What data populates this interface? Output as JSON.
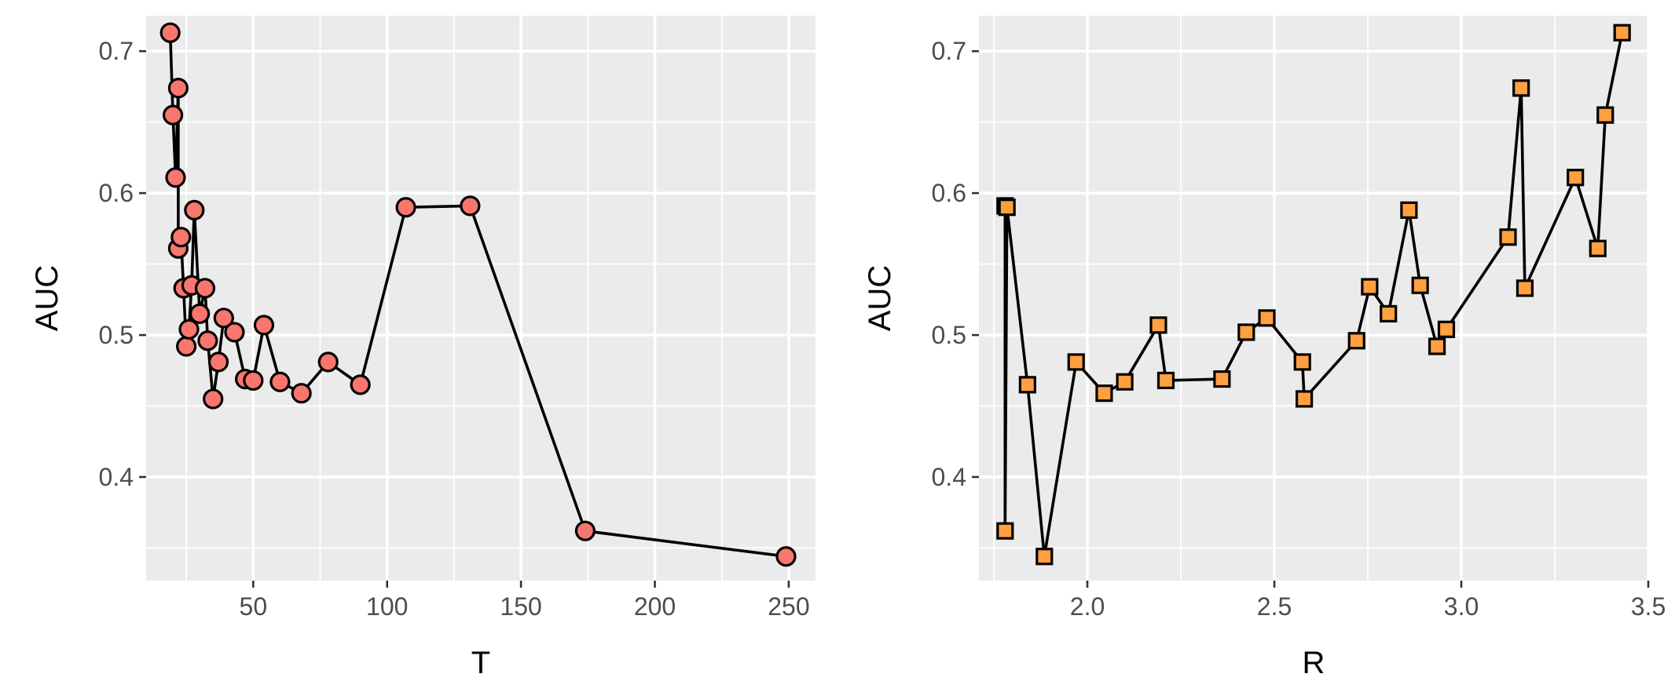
{
  "chart_data": [
    {
      "type": "line",
      "xlabel": "T",
      "ylabel": "AUC",
      "xlim": [
        10,
        260
      ],
      "ylim": [
        0.327,
        0.725
      ],
      "x_ticks": [
        50,
        100,
        150,
        200,
        250
      ],
      "y_ticks": [
        0.4,
        0.5,
        0.6,
        0.7
      ],
      "x_tick_labels": [
        "50",
        "100",
        "150",
        "200",
        "250"
      ],
      "y_tick_labels": [
        "0.4",
        "0.5",
        "0.6",
        "0.7"
      ],
      "grid": true,
      "marker": "circle",
      "marker_color": "#f8766d",
      "points": [
        {
          "x": 19,
          "y": 0.713
        },
        {
          "x": 20,
          "y": 0.655
        },
        {
          "x": 21,
          "y": 0.611
        },
        {
          "x": 22,
          "y": 0.674
        },
        {
          "x": 22,
          "y": 0.561
        },
        {
          "x": 23,
          "y": 0.569
        },
        {
          "x": 24,
          "y": 0.533
        },
        {
          "x": 25,
          "y": 0.492
        },
        {
          "x": 26,
          "y": 0.504
        },
        {
          "x": 27,
          "y": 0.535
        },
        {
          "x": 28,
          "y": 0.588
        },
        {
          "x": 30,
          "y": 0.515
        },
        {
          "x": 32,
          "y": 0.533
        },
        {
          "x": 33,
          "y": 0.496
        },
        {
          "x": 35,
          "y": 0.455
        },
        {
          "x": 37,
          "y": 0.481
        },
        {
          "x": 39,
          "y": 0.512
        },
        {
          "x": 43,
          "y": 0.502
        },
        {
          "x": 47,
          "y": 0.469
        },
        {
          "x": 50,
          "y": 0.468
        },
        {
          "x": 54,
          "y": 0.507
        },
        {
          "x": 60,
          "y": 0.467
        },
        {
          "x": 68,
          "y": 0.459
        },
        {
          "x": 78,
          "y": 0.481
        },
        {
          "x": 90,
          "y": 0.465
        },
        {
          "x": 107,
          "y": 0.59
        },
        {
          "x": 131,
          "y": 0.591
        },
        {
          "x": 174,
          "y": 0.362
        },
        {
          "x": 249,
          "y": 0.344
        }
      ]
    },
    {
      "type": "line",
      "xlabel": "R",
      "ylabel": "AUC",
      "xlim": [
        1.71,
        3.5
      ],
      "ylim": [
        0.327,
        0.725
      ],
      "x_ticks": [
        2.0,
        2.5,
        3.0,
        3.5
      ],
      "y_ticks": [
        0.4,
        0.5,
        0.6,
        0.7
      ],
      "x_tick_labels": [
        "2.0",
        "2.5",
        "3.0",
        "3.5"
      ],
      "y_tick_labels": [
        "0.4",
        "0.5",
        "0.6",
        "0.7"
      ],
      "grid": true,
      "marker": "square",
      "marker_color": "#ff9f40",
      "points": [
        {
          "x": 1.78,
          "y": 0.591
        },
        {
          "x": 1.78,
          "y": 0.362
        },
        {
          "x": 1.785,
          "y": 0.59
        },
        {
          "x": 1.84,
          "y": 0.465
        },
        {
          "x": 1.885,
          "y": 0.344
        },
        {
          "x": 1.97,
          "y": 0.481
        },
        {
          "x": 2.045,
          "y": 0.459
        },
        {
          "x": 2.1,
          "y": 0.467
        },
        {
          "x": 2.19,
          "y": 0.507
        },
        {
          "x": 2.21,
          "y": 0.468
        },
        {
          "x": 2.36,
          "y": 0.469
        },
        {
          "x": 2.425,
          "y": 0.502
        },
        {
          "x": 2.48,
          "y": 0.512
        },
        {
          "x": 2.575,
          "y": 0.481
        },
        {
          "x": 2.58,
          "y": 0.455
        },
        {
          "x": 2.72,
          "y": 0.496
        },
        {
          "x": 2.755,
          "y": 0.534
        },
        {
          "x": 2.805,
          "y": 0.515
        },
        {
          "x": 2.86,
          "y": 0.588
        },
        {
          "x": 2.89,
          "y": 0.535
        },
        {
          "x": 2.935,
          "y": 0.492
        },
        {
          "x": 2.96,
          "y": 0.504
        },
        {
          "x": 3.125,
          "y": 0.569
        },
        {
          "x": 3.16,
          "y": 0.674
        },
        {
          "x": 3.17,
          "y": 0.533
        },
        {
          "x": 3.305,
          "y": 0.611
        },
        {
          "x": 3.365,
          "y": 0.561
        },
        {
          "x": 3.385,
          "y": 0.655
        },
        {
          "x": 3.43,
          "y": 0.713
        }
      ]
    }
  ]
}
